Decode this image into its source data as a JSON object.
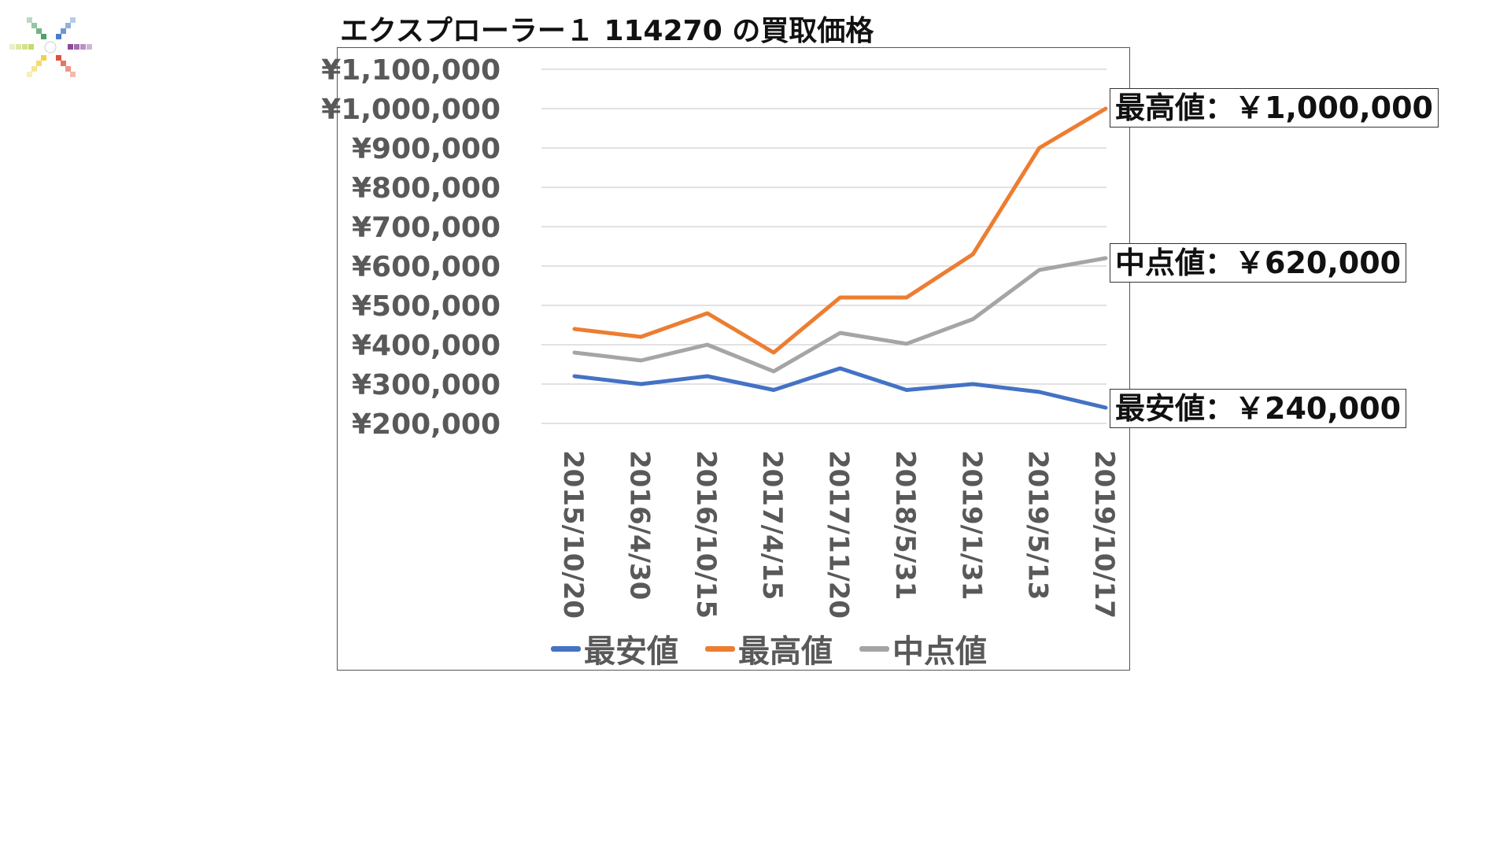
{
  "title": "エクスプローラー１ 114270 の買取価格",
  "colors": {
    "min": "#4472C4",
    "max": "#ED7D31",
    "mid": "#A5A5A5",
    "grid": "#D9D9D9",
    "tick": "#595959"
  },
  "callouts": {
    "max": "最高値：￥1,000,000",
    "mid": "中点値：￥620,000",
    "min": "最安値：￥240,000"
  },
  "chart_data": {
    "type": "line",
    "categories": [
      "2015/10/20",
      "2016/4/30",
      "2016/10/15",
      "2017/4/15",
      "2017/11/20",
      "2018/5/31",
      "2019/1/31",
      "2019/5/13",
      "2019/10/17"
    ],
    "series": [
      {
        "name": "最安値",
        "values": [
          320000,
          300000,
          320000,
          285000,
          340000,
          285000,
          300000,
          280000,
          240000
        ]
      },
      {
        "name": "最高値",
        "values": [
          440000,
          420000,
          480000,
          380000,
          520000,
          520000,
          630000,
          900000,
          1000000
        ]
      },
      {
        "name": "中点値",
        "values": [
          380000,
          360000,
          400000,
          332500,
          430000,
          402500,
          465000,
          590000,
          620000
        ]
      }
    ],
    "y_ticks": [
      "¥200,000",
      "¥300,000",
      "¥400,000",
      "¥500,000",
      "¥600,000",
      "¥700,000",
      "¥800,000",
      "¥900,000",
      "¥1,000,000",
      "¥1,100,000"
    ],
    "ylim": [
      200000,
      1100000
    ],
    "grid": true,
    "legend_position": "bottom"
  }
}
